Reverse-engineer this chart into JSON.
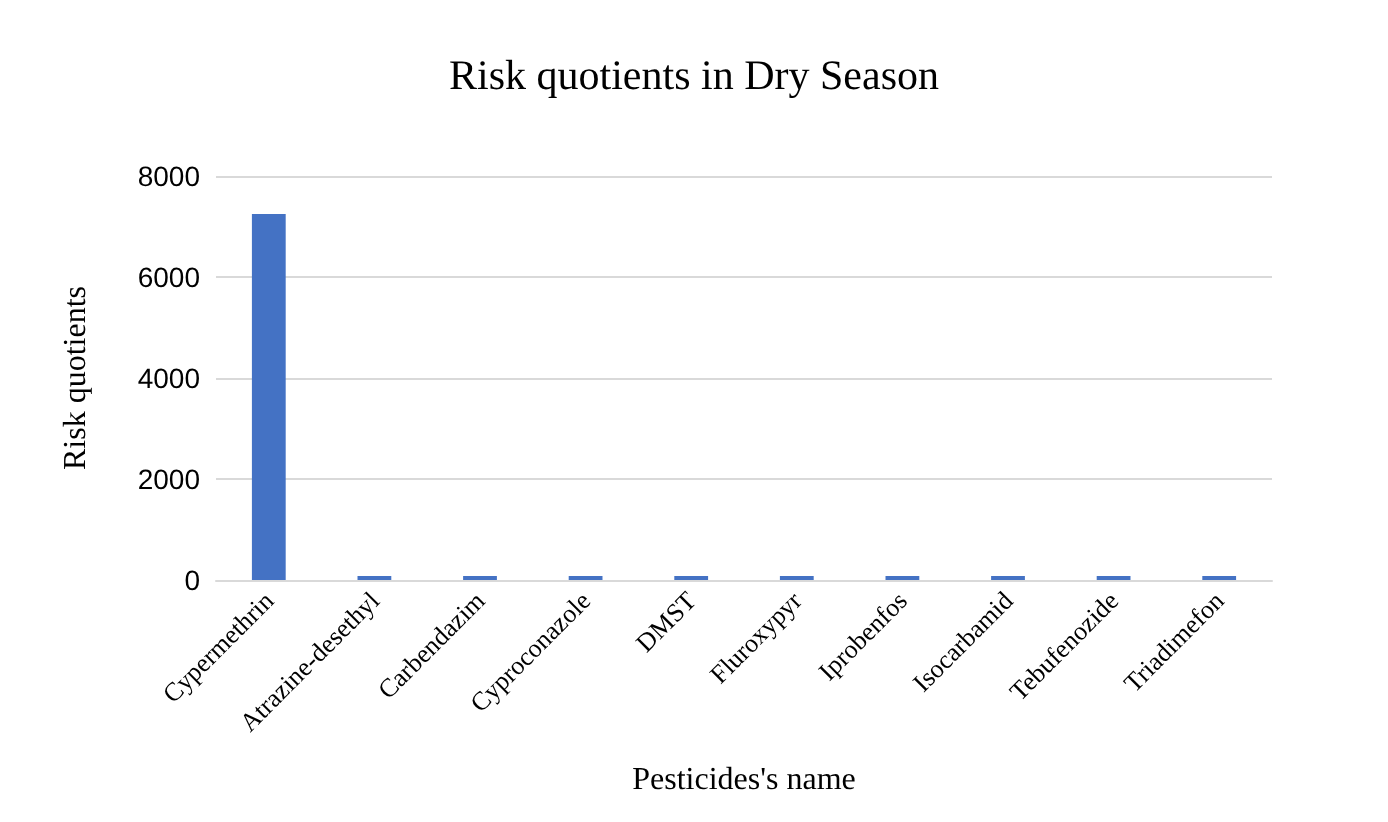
{
  "chart_data": {
    "type": "bar",
    "title": "Risk quotients in Dry Season",
    "xlabel": "Pesticides's name",
    "ylabel": "Risk quotients",
    "categories": [
      "Cypermethrin",
      "Atrazine-desethyl",
      "Carbendazim",
      "Cyproconazole",
      "DMST",
      "Fluroxypyr",
      "Iprobenfos",
      "Isocarbamid",
      "Tebufenozide",
      "Triadimefon"
    ],
    "values": [
      7250,
      0,
      0,
      0,
      0,
      0,
      0,
      0,
      0,
      0
    ],
    "color": "#4472c4",
    "ylim": [
      0,
      8000
    ],
    "yticks": [
      0,
      2000,
      4000,
      6000,
      8000
    ],
    "grid": "y"
  }
}
